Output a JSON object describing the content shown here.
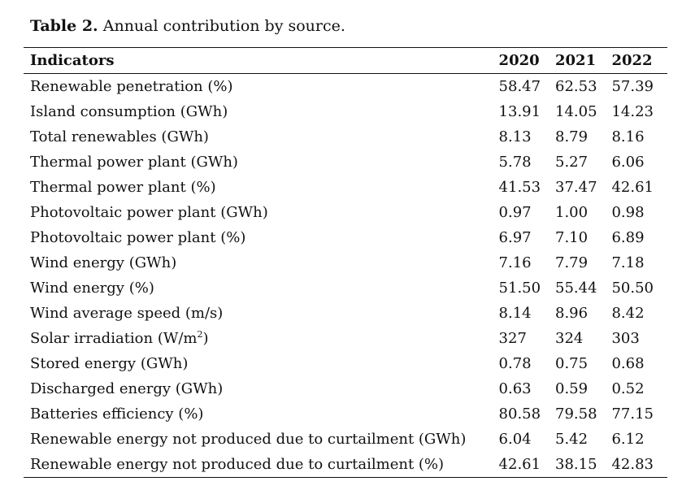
{
  "caption": {
    "label": "Table 2.",
    "text": "Annual contribution by source."
  },
  "table": {
    "headers": [
      "Indicators",
      "2020",
      "2021",
      "2022"
    ],
    "rows": [
      {
        "indicator": "Renewable penetration (%)",
        "v2020": "58.47",
        "v2021": "62.53",
        "v2022": "57.39"
      },
      {
        "indicator": "Island consumption (GWh)",
        "v2020": "13.91",
        "v2021": "14.05",
        "v2022": "14.23"
      },
      {
        "indicator": "Total renewables (GWh)",
        "v2020": "8.13",
        "v2021": "8.79",
        "v2022": "8.16"
      },
      {
        "indicator": "Thermal power plant (GWh)",
        "v2020": "5.78",
        "v2021": "5.27",
        "v2022": "6.06"
      },
      {
        "indicator": "Thermal power plant (%)",
        "v2020": "41.53",
        "v2021": "37.47",
        "v2022": "42.61"
      },
      {
        "indicator": "Photovoltaic power plant (GWh)",
        "v2020": "0.97",
        "v2021": "1.00",
        "v2022": "0.98"
      },
      {
        "indicator": "Photovoltaic power plant (%)",
        "v2020": "6.97",
        "v2021": "7.10",
        "v2022": "6.89"
      },
      {
        "indicator": "Wind energy (GWh)",
        "v2020": "7.16",
        "v2021": "7.79",
        "v2022": "7.18"
      },
      {
        "indicator": "Wind energy (%)",
        "v2020": "51.50",
        "v2021": "55.44",
        "v2022": "50.50"
      },
      {
        "indicator": "Wind average speed (m/s)",
        "v2020": "8.14",
        "v2021": "8.96",
        "v2022": "8.42"
      },
      {
        "indicator_pre": "Solar irradiation (W/m",
        "indicator_sup": "2",
        "indicator_post": ")",
        "v2020": "327",
        "v2021": "324",
        "v2022": "303"
      },
      {
        "indicator": "Stored energy (GWh)",
        "v2020": "0.78",
        "v2021": "0.75",
        "v2022": "0.68"
      },
      {
        "indicator": "Discharged energy (GWh)",
        "v2020": "0.63",
        "v2021": "0.59",
        "v2022": "0.52"
      },
      {
        "indicator": "Batteries efficiency (%)",
        "v2020": "80.58",
        "v2021": "79.58",
        "v2022": "77.15"
      },
      {
        "indicator": "Renewable energy not produced due to curtailment (GWh)",
        "v2020": "6.04",
        "v2021": "5.42",
        "v2022": "6.12"
      },
      {
        "indicator": "Renewable energy not produced due to curtailment (%)",
        "v2020": "42.61",
        "v2021": "38.15",
        "v2022": "42.83"
      }
    ]
  }
}
